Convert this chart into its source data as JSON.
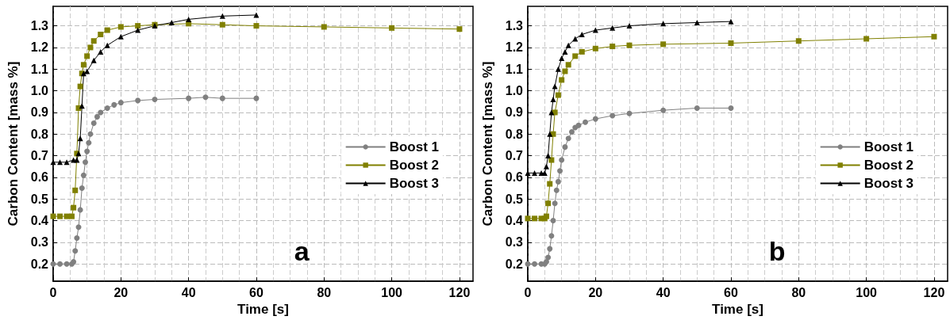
{
  "chart_data": [
    {
      "type": "line",
      "xlabel": "Time [s]",
      "ylabel": "Carbon Content [mass %]",
      "annotations": [
        "a"
      ],
      "xlim": [
        0,
        124
      ],
      "xticks": [
        0,
        20,
        40,
        60,
        80,
        100,
        120
      ],
      "ylim": [
        0.12,
        1.39
      ],
      "yticks": [
        0.2,
        0.3,
        0.4,
        0.5,
        0.6,
        0.7,
        0.8,
        0.9,
        {
          "value": 1.0,
          "label": "1.0"
        },
        1.1,
        1.2,
        1.3
      ],
      "grid": true,
      "legend": "right",
      "line_style": "solid",
      "series": [
        {
          "name": "Boost 1",
          "color": "#808080",
          "marker": "circle",
          "x": [
            0,
            2,
            4,
            5.5,
            6,
            6.5,
            7,
            7.5,
            8,
            8.5,
            9,
            9.5,
            10,
            10.5,
            11,
            12,
            13,
            14,
            16,
            18,
            20,
            25,
            30,
            40,
            45,
            50,
            60
          ],
          "values": [
            0.2,
            0.2,
            0.2,
            0.2,
            0.21,
            0.26,
            0.32,
            0.37,
            0.45,
            0.55,
            0.61,
            0.67,
            0.72,
            0.76,
            0.8,
            0.85,
            0.88,
            0.9,
            0.92,
            0.935,
            0.945,
            0.955,
            0.96,
            0.965,
            0.97,
            0.965,
            0.965
          ]
        },
        {
          "name": "Boost 2",
          "color": "#808000",
          "marker": "square",
          "x": [
            0,
            2,
            4,
            5.5,
            6,
            6.5,
            7,
            7.5,
            8,
            8.5,
            9,
            10,
            11,
            12,
            14,
            16,
            20,
            25,
            30,
            40,
            50,
            60,
            80,
            100,
            120
          ],
          "values": [
            0.42,
            0.42,
            0.42,
            0.42,
            0.46,
            0.54,
            0.71,
            0.92,
            1.02,
            1.08,
            1.12,
            1.16,
            1.2,
            1.23,
            1.26,
            1.28,
            1.295,
            1.3,
            1.305,
            1.31,
            1.305,
            1.3,
            1.295,
            1.29,
            1.285
          ]
        },
        {
          "name": "Boost 3",
          "color": "#000000",
          "marker": "triangle",
          "x": [
            0,
            2,
            4,
            6,
            7,
            7.5,
            8,
            8.5,
            9,
            10,
            12,
            14,
            16,
            20,
            25,
            30,
            35,
            40,
            50,
            60
          ],
          "values": [
            0.67,
            0.67,
            0.67,
            0.68,
            0.68,
            0.71,
            0.78,
            0.93,
            1.08,
            1.09,
            1.14,
            1.18,
            1.21,
            1.25,
            1.28,
            1.3,
            1.315,
            1.33,
            1.345,
            1.35
          ]
        }
      ]
    },
    {
      "type": "line",
      "xlabel": "Time [s]",
      "ylabel": "Carbon Content [mass %]",
      "annotations": [
        "b"
      ],
      "xlim": [
        0,
        124
      ],
      "xticks": [
        0,
        20,
        40,
        60,
        80,
        100,
        120
      ],
      "ylim": [
        0.12,
        1.39
      ],
      "yticks": [
        0.2,
        0.3,
        0.4,
        0.5,
        0.6,
        0.7,
        0.8,
        0.9,
        {
          "value": 1.0,
          "label": "1.0"
        },
        1.1,
        1.2,
        1.3
      ],
      "grid": true,
      "legend": "right",
      "line_style": "solid",
      "series": [
        {
          "name": "Boost 1",
          "color": "#808080",
          "marker": "circle",
          "x": [
            0,
            2,
            4,
            5,
            5.5,
            6,
            6.5,
            7,
            7.5,
            8,
            8.5,
            9,
            9.5,
            10,
            11,
            12,
            13,
            14,
            15,
            17,
            20,
            25,
            30,
            40,
            50,
            60
          ],
          "values": [
            0.2,
            0.2,
            0.2,
            0.2,
            0.21,
            0.23,
            0.27,
            0.33,
            0.4,
            0.48,
            0.54,
            0.58,
            0.63,
            0.68,
            0.74,
            0.78,
            0.81,
            0.83,
            0.84,
            0.855,
            0.87,
            0.885,
            0.895,
            0.91,
            0.92,
            0.92
          ]
        },
        {
          "name": "Boost 2",
          "color": "#808000",
          "marker": "square",
          "x": [
            0,
            2,
            4,
            5,
            5.5,
            6,
            6.5,
            7,
            7.5,
            8,
            9,
            10,
            11,
            12,
            14,
            16,
            20,
            25,
            30,
            40,
            60,
            80,
            100,
            120
          ],
          "values": [
            0.41,
            0.41,
            0.41,
            0.41,
            0.42,
            0.48,
            0.57,
            0.68,
            0.8,
            0.9,
            0.98,
            1.05,
            1.09,
            1.12,
            1.16,
            1.18,
            1.195,
            1.205,
            1.21,
            1.215,
            1.22,
            1.23,
            1.24,
            1.25
          ]
        },
        {
          "name": "Boost 3",
          "color": "#000000",
          "marker": "triangle",
          "x": [
            0,
            2,
            4,
            5,
            5.5,
            6,
            6.5,
            7,
            7.5,
            8,
            9,
            10,
            11,
            12,
            14,
            16,
            20,
            25,
            30,
            40,
            50,
            60
          ],
          "values": [
            0.62,
            0.62,
            0.62,
            0.62,
            0.65,
            0.7,
            0.8,
            0.9,
            0.96,
            1.02,
            1.1,
            1.15,
            1.18,
            1.21,
            1.24,
            1.26,
            1.28,
            1.29,
            1.3,
            1.31,
            1.315,
            1.32
          ]
        }
      ]
    }
  ]
}
